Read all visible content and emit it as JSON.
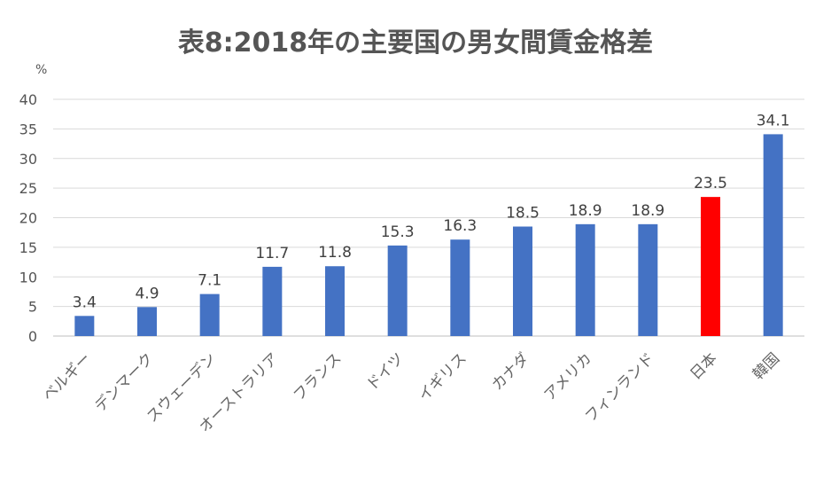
{
  "chart_data": {
    "type": "bar",
    "title": "表8:2018年の主要国の男女間賃金格差",
    "unit_label": "%",
    "categories": [
      "ベルギー",
      "デンマーク",
      "スウェーデン",
      "オーストラリア",
      "フランス",
      "ドイツ",
      "イギリス",
      "カナダ",
      "アメリカ",
      "フィンランド",
      "日本",
      "韓国"
    ],
    "values": [
      3.4,
      4.9,
      7.1,
      11.7,
      11.8,
      15.3,
      16.3,
      18.5,
      18.9,
      18.9,
      23.5,
      34.1
    ],
    "data_labels": [
      "3.4",
      "4.9",
      "7.1",
      "11.7",
      "11.8",
      "15.3",
      "16.3",
      "18.5",
      "18.9",
      "18.9",
      "23.5",
      "34.1"
    ],
    "ylim": [
      0,
      40
    ],
    "yticks": [
      0,
      5,
      10,
      15,
      20,
      25,
      30,
      35,
      40
    ],
    "ytick_labels": [
      "0",
      "5",
      "10",
      "15",
      "20",
      "25",
      "30",
      "35",
      "40"
    ],
    "grid": true,
    "legend": "none",
    "colors": {
      "default_bar": "#4472C4",
      "highlight_bar": "#FF0000",
      "highlight_category": "日本"
    }
  }
}
